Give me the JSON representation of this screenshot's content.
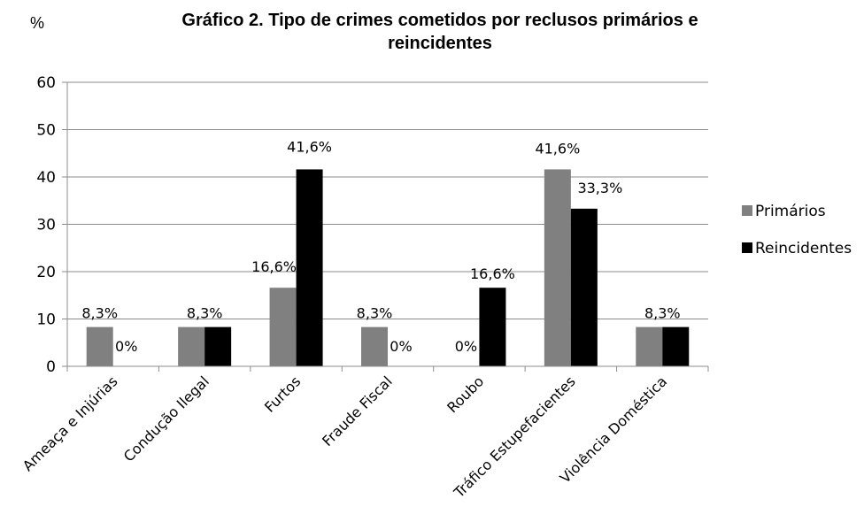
{
  "chart_data": {
    "type": "bar",
    "title_line1": "Gráfico 2. Tipo de crimes cometidos por reclusos primários e",
    "title_line2": "reincidentes",
    "ylabel": "%",
    "ylim": [
      0,
      60
    ],
    "yticks": [
      0,
      10,
      20,
      30,
      40,
      50,
      60
    ],
    "grid": true,
    "legend_position": "right",
    "categories": [
      "Ameaça e Injúrias",
      "Condução Ilegal",
      "Furtos",
      "Fraude Fiscal",
      "Roubo",
      "Tráfico Estupefacientes",
      "Violência Doméstica"
    ],
    "series": [
      {
        "name": "Primários",
        "color": "#808080",
        "values": [
          8.3,
          8.3,
          16.6,
          8.3,
          0,
          41.6,
          8.3
        ],
        "labels": [
          "8,3%",
          "8,3%",
          "16,6%",
          "8,3%",
          "0%",
          "41,6%",
          "8,3%"
        ]
      },
      {
        "name": "Reincidentes",
        "color": "#000000",
        "values": [
          0,
          8.3,
          41.6,
          0,
          16.6,
          33.3,
          8.3
        ],
        "labels": [
          "0%",
          "",
          "41,6%",
          "0%",
          "16,6%",
          "33,3%",
          ""
        ]
      }
    ]
  }
}
